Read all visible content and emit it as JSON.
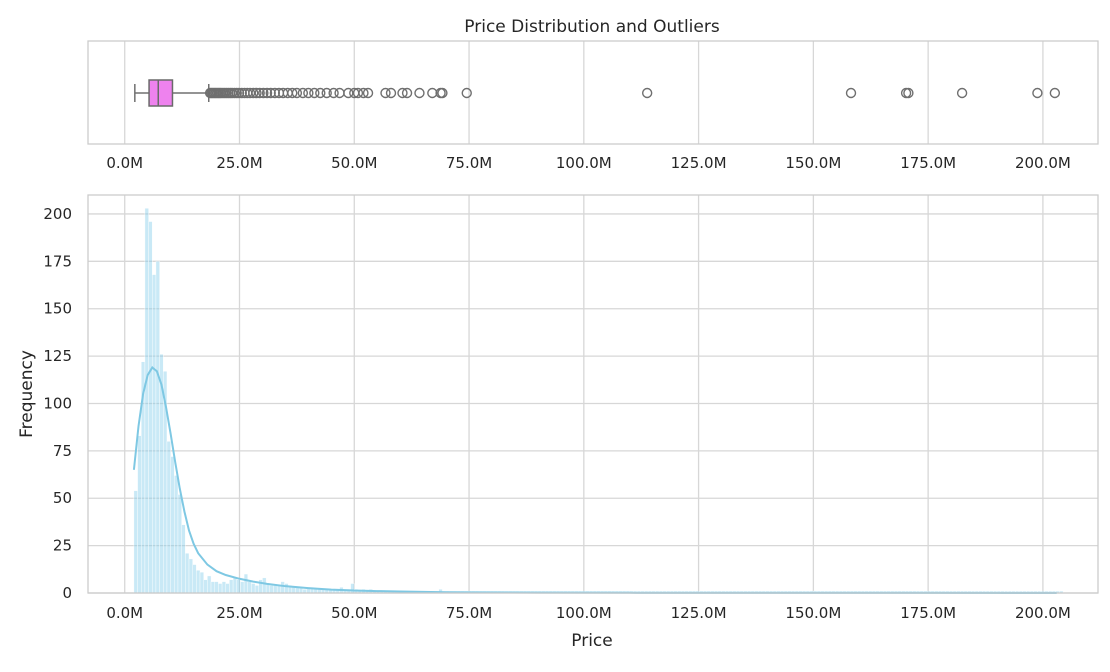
{
  "chart_data": [
    {
      "type": "box",
      "title": "Price Distribution and Outliers",
      "xlabel": "",
      "ylabel": "",
      "xlim": [
        -8,
        212
      ],
      "x_ticks": [
        0,
        25,
        50,
        75,
        100,
        125,
        150,
        175,
        200
      ],
      "x_tick_labels": [
        "0.0M",
        "25.0M",
        "50.0M",
        "75.0M",
        "100.0M",
        "125.0M",
        "150.0M",
        "175.0M",
        "200.0M"
      ],
      "grid": true,
      "box": {
        "whisker_low": 2.2,
        "q1": 5.3,
        "median": 7.3,
        "q3": 10.4,
        "whisker_high": 18.3,
        "color": "#ee82ee"
      },
      "outliers": [
        18.6,
        18.9,
        19.2,
        19.5,
        19.8,
        20.1,
        20.4,
        20.7,
        21.0,
        21.4,
        21.8,
        22.2,
        22.6,
        23.0,
        23.4,
        23.9,
        24.4,
        24.9,
        25.5,
        26.1,
        26.7,
        27.3,
        28.0,
        28.7,
        29.4,
        30.2,
        31.0,
        31.8,
        32.7,
        33.6,
        34.5,
        35.5,
        36.5,
        37.5,
        38.8,
        40.0,
        41.3,
        42.6,
        44.0,
        45.5,
        46.8,
        48.7,
        50.0,
        50.8,
        52.0,
        53.0,
        56.8,
        58.0,
        60.5,
        61.5,
        64.2,
        67.0,
        68.8,
        69.2,
        74.5,
        113.8,
        158.2,
        170.2,
        170.7,
        182.4,
        198.8,
        202.6
      ]
    },
    {
      "type": "histogram",
      "title": "",
      "xlabel": "Price",
      "ylabel": "Frequency",
      "xlim": [
        -8,
        212
      ],
      "ylim": [
        0,
        210
      ],
      "x_ticks": [
        0,
        25,
        50,
        75,
        100,
        125,
        150,
        175,
        200
      ],
      "x_tick_labels": [
        "0.0M",
        "25.0M",
        "50.0M",
        "75.0M",
        "100.0M",
        "125.0M",
        "150.0M",
        "175.0M",
        "200.0M"
      ],
      "y_ticks": [
        0,
        25,
        50,
        75,
        100,
        125,
        150,
        175,
        200
      ],
      "y_tick_labels": [
        "0",
        "25",
        "50",
        "75",
        "100",
        "125",
        "150",
        "175",
        "200"
      ],
      "grid": true,
      "bar_color": "#87ceeb",
      "kde_color": "#7ec8e3",
      "bin_start": 2.0,
      "bin_width": 0.8,
      "counts": [
        54,
        83,
        122,
        203,
        196,
        168,
        175,
        126,
        117,
        80,
        72,
        62,
        52,
        36,
        21,
        18,
        15,
        12,
        11,
        7,
        9,
        6,
        6,
        5,
        6,
        5,
        7,
        8,
        7,
        6,
        10,
        6,
        5,
        4,
        7,
        8,
        5,
        4,
        4,
        4,
        6,
        5,
        4,
        3,
        3,
        3,
        2,
        3,
        3,
        2,
        2,
        2,
        2,
        2,
        2,
        2,
        3,
        2,
        2,
        5,
        2,
        1,
        2,
        1,
        2,
        1,
        1,
        1,
        1,
        1,
        1,
        1,
        1,
        1,
        1,
        1,
        1,
        1,
        1,
        1,
        1,
        1,
        1,
        2,
        1,
        1,
        1,
        1,
        1,
        1,
        1,
        1,
        1,
        1,
        1,
        1,
        1,
        1,
        1,
        1,
        1,
        1,
        1,
        1,
        1,
        1,
        1,
        1,
        1,
        1,
        1,
        1,
        1,
        1,
        1,
        1,
        1,
        1,
        1,
        1,
        1,
        1,
        1,
        1,
        1,
        1,
        1,
        1,
        1,
        1,
        1,
        1,
        1,
        1,
        1,
        1,
        1,
        1,
        1,
        1,
        1,
        1,
        1,
        1,
        1,
        1,
        1,
        1,
        1,
        1,
        1,
        1,
        1,
        1,
        1,
        1,
        1,
        1,
        1,
        1,
        1,
        1,
        1,
        1,
        1,
        1,
        1,
        1,
        1,
        1,
        1,
        1,
        1,
        1,
        1,
        1,
        1,
        1,
        1,
        1,
        1,
        1,
        1,
        1,
        1,
        1,
        1,
        1,
        1,
        1,
        1,
        1,
        1,
        1,
        1,
        1,
        1,
        1,
        1,
        1,
        1,
        1,
        1,
        1,
        1,
        1,
        1,
        1,
        1,
        1,
        1,
        1,
        1,
        1,
        1,
        1,
        1,
        1,
        1,
        1,
        1,
        1,
        1,
        1,
        1,
        1,
        1,
        1,
        1,
        1,
        1,
        1,
        1,
        1,
        1,
        1,
        1,
        1,
        1,
        1,
        1,
        1,
        1,
        1,
        1,
        1,
        1,
        1,
        1,
        1,
        1,
        1,
        1
      ],
      "kde": [
        [
          2.0,
          65
        ],
        [
          3.0,
          88
        ],
        [
          4.0,
          105
        ],
        [
          5.0,
          115
        ],
        [
          6.0,
          119
        ],
        [
          7.0,
          117
        ],
        [
          8.0,
          110
        ],
        [
          9.0,
          98
        ],
        [
          10.0,
          84
        ],
        [
          11.0,
          69
        ],
        [
          12.0,
          55
        ],
        [
          13.0,
          43
        ],
        [
          14.0,
          33
        ],
        [
          15.0,
          26
        ],
        [
          16.0,
          21
        ],
        [
          18.0,
          15
        ],
        [
          20.0,
          11.5
        ],
        [
          22.0,
          9.5
        ],
        [
          25.0,
          7.5
        ],
        [
          28.0,
          6
        ],
        [
          31.0,
          4.8
        ],
        [
          35.0,
          3.6
        ],
        [
          40.0,
          2.6
        ],
        [
          45.0,
          1.8
        ],
        [
          50.0,
          1.3
        ],
        [
          55.0,
          1.0
        ],
        [
          60.0,
          0.8
        ],
        [
          65.0,
          0.6
        ],
        [
          70.0,
          0.4
        ],
        [
          75.0,
          0.3
        ],
        [
          90.0,
          0.2
        ],
        [
          110.0,
          0.1
        ],
        [
          150.0,
          0.05
        ],
        [
          170.0,
          0.05
        ],
        [
          203.0,
          0.0
        ]
      ]
    }
  ]
}
